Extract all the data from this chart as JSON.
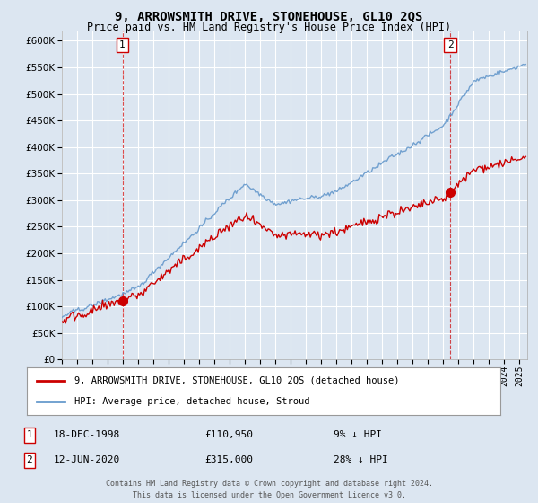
{
  "title": "9, ARROWSMITH DRIVE, STONEHOUSE, GL10 2QS",
  "subtitle": "Price paid vs. HM Land Registry's House Price Index (HPI)",
  "ylabel_vals": [
    0,
    50000,
    100000,
    150000,
    200000,
    250000,
    300000,
    350000,
    400000,
    450000,
    500000,
    550000,
    600000
  ],
  "ylim": [
    0,
    620000
  ],
  "xlim_start": 1995.0,
  "xlim_end": 2025.5,
  "background_color": "#dce6f1",
  "plot_bg_color": "#dce6f1",
  "grid_color": "#ffffff",
  "sale1_date": 1998.97,
  "sale1_price": 110950,
  "sale1_label": "1",
  "sale2_date": 2020.45,
  "sale2_price": 315000,
  "sale2_label": "2",
  "legend_line1": "9, ARROWSMITH DRIVE, STONEHOUSE, GL10 2QS (detached house)",
  "legend_line2": "HPI: Average price, detached house, Stroud",
  "footer": "Contains HM Land Registry data © Crown copyright and database right 2024.\nThis data is licensed under the Open Government Licence v3.0.",
  "house_line_color": "#cc0000",
  "hpi_line_color": "#6699cc",
  "marker_box_color": "#cc0000",
  "sale_annotations": [
    {
      "label": "1",
      "date": "18-DEC-1998",
      "price": "£110,950",
      "hpi_note": "9% ↓ HPI"
    },
    {
      "label": "2",
      "date": "12-JUN-2020",
      "price": "£315,000",
      "hpi_note": "28% ↓ HPI"
    }
  ]
}
